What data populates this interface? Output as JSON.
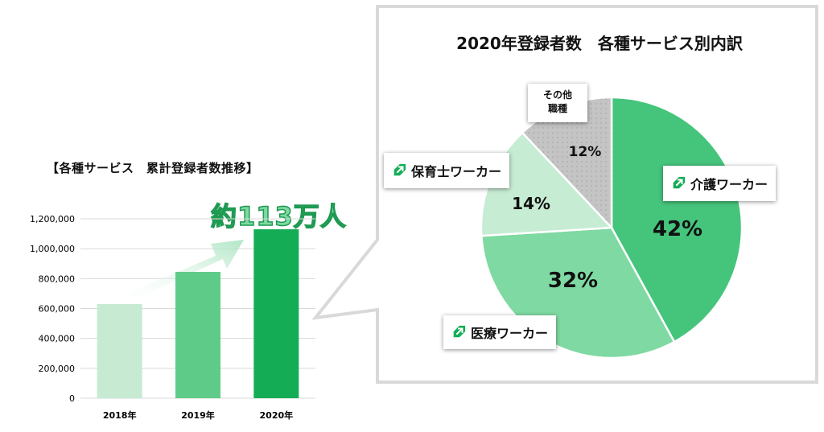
{
  "chart_data": [
    {
      "type": "bar",
      "title": "【各種サービス　累計登録者数推移】",
      "categories": [
        "2018年",
        "2019年",
        "2020年"
      ],
      "values": [
        630000,
        845000,
        1130000
      ],
      "colors": [
        "#c7ead3",
        "#5fcb89",
        "#14ad56"
      ],
      "ylim": [
        0,
        1200000
      ],
      "yticks": [
        "0",
        "200,000",
        "400,000",
        "600,000",
        "800,000",
        "1,000,000",
        "1,200,000"
      ],
      "ytick_values": [
        0,
        200000,
        400000,
        600000,
        800000,
        1000000,
        1200000
      ],
      "grid": true,
      "annotation": "約113万人"
    },
    {
      "type": "pie",
      "title": "2020年登録者数　各種サービス別内訳",
      "labels": [
        "介護ワーカー",
        "医療ワーカー",
        "保育士ワーカー",
        "その他\n職種"
      ],
      "values": [
        42,
        32,
        14,
        12
      ],
      "value_labels": [
        "42%",
        "32%",
        "14%",
        "12%"
      ],
      "colors": [
        "#45c47c",
        "#7fd9a2",
        "#c6ecd4",
        "#c4c4c4"
      ]
    }
  ],
  "colors": {
    "brand_green": "#14ad56",
    "icon": "leaf-arrow-icon"
  }
}
